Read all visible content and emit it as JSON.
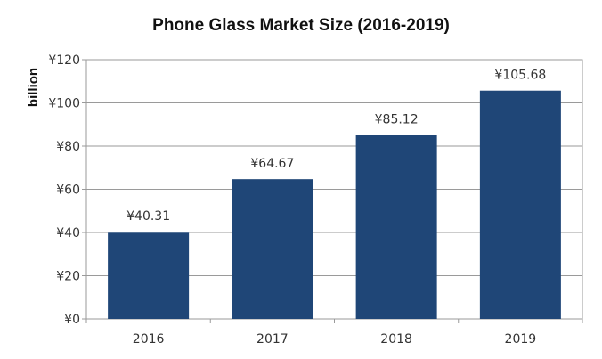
{
  "chart_data": {
    "type": "bar",
    "title": "Phone Glass Market Size (2016-2019)",
    "ylabel": "billion",
    "xlabel": "",
    "categories": [
      "2016",
      "2017",
      "2018",
      "2019"
    ],
    "values": [
      40.31,
      64.67,
      85.12,
      105.68
    ],
    "data_labels": [
      "¥40.31",
      "¥64.67",
      "¥85.12",
      "¥105.68"
    ],
    "ylim": [
      0,
      120
    ],
    "yticks": [
      0,
      20,
      40,
      60,
      80,
      100,
      120
    ],
    "ytick_labels": [
      "¥0",
      "¥20",
      "¥40",
      "¥60",
      "¥80",
      "¥100",
      "¥120"
    ],
    "grid": true,
    "legend": "none",
    "bar_color": "#1f4677"
  }
}
